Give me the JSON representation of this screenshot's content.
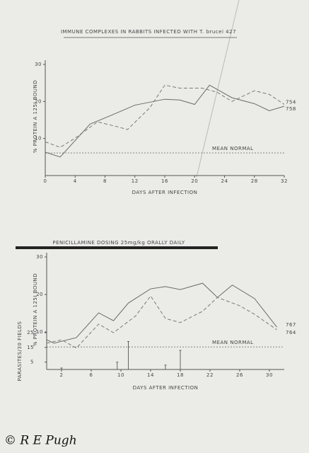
{
  "chart_data": [
    {
      "type": "line",
      "title": "IMMUNE COMPLEXES IN RABBITS INFECTED WITH T. brucei 427",
      "ylabel": "% PROTEIN A 125I BOUND",
      "xlabel": "DAYS AFTER INFECTION",
      "xlim": [
        0,
        32
      ],
      "xticks": [
        0,
        4,
        8,
        12,
        16,
        20,
        24,
        28,
        32
      ],
      "ylim": [
        0,
        30
      ],
      "yticks": [
        10,
        20,
        30
      ],
      "reference": {
        "label": "MEAN NORMAL",
        "value": 6.1
      },
      "series": [
        {
          "name": "754",
          "color": "#7a7a7a",
          "style": "dashed",
          "x": [
            0,
            2,
            4,
            7,
            10,
            11,
            14,
            16,
            18,
            21,
            23,
            25,
            28,
            30,
            32
          ],
          "values": [
            9.1,
            7.6,
            10.1,
            14.5,
            13,
            12.4,
            18.3,
            24.4,
            23.6,
            23.6,
            22.5,
            20,
            22.9,
            21.9,
            19.2
          ]
        },
        {
          "name": "758",
          "color": "#6a6a6a",
          "style": "solid",
          "x": [
            0,
            2,
            6,
            9,
            12,
            16,
            18,
            20,
            22,
            25,
            28,
            30,
            32
          ],
          "values": [
            6.3,
            5,
            13.9,
            16.4,
            19,
            20.6,
            20.4,
            19.2,
            24.4,
            21,
            19.4,
            17.5,
            18.7
          ]
        }
      ]
    },
    {
      "type": "line",
      "title": "PENICILLAMINE DOSING 25mg/kg ORALLY DAILY",
      "ylabel": "% PROTEIN A 125I BOUND",
      "xlabel": "DAYS AFTER INFECTION",
      "xlim": [
        0,
        32
      ],
      "xticks": [
        2,
        6,
        10,
        14,
        18,
        22,
        26,
        30
      ],
      "ylim": [
        0,
        30
      ],
      "yticks": [
        10,
        20,
        30
      ],
      "reference": {
        "label": "MEAN NORMAL",
        "value": 6.0
      },
      "series": [
        {
          "name": "767",
          "color": "#6a6a6a",
          "style": "solid",
          "x": [
            0,
            1,
            4,
            7,
            9,
            11,
            14,
            16,
            18,
            21,
            23,
            25,
            28,
            31
          ],
          "values": [
            7.9,
            7,
            8.5,
            15.1,
            13,
            17.7,
            21.5,
            22.1,
            21.3,
            23,
            19.2,
            22.5,
            18.9,
            11.3
          ]
        },
        {
          "name": "764",
          "color": "#7a7a7a",
          "style": "dashed",
          "x": [
            0,
            2,
            4,
            7,
            9,
            12,
            14,
            16,
            18,
            21,
            23,
            26,
            28,
            31
          ],
          "values": [
            7,
            7.9,
            5.7,
            12.1,
            9.8,
            14.3,
            19.6,
            13.6,
            12.5,
            15.5,
            19.2,
            17,
            14.7,
            10.6
          ]
        }
      ],
      "y2label": "PARASITES/30 FIELDS",
      "y2lim": [
        0,
        25
      ],
      "y2ticks": [
        5,
        15,
        25
      ],
      "parasites": {
        "color": "#555555",
        "x": [
          2,
          9.5,
          11,
          16,
          18
        ],
        "values": [
          1,
          5,
          19,
          3,
          13
        ]
      }
    }
  ],
  "footer": {
    "credit": "© R E Pugh"
  }
}
